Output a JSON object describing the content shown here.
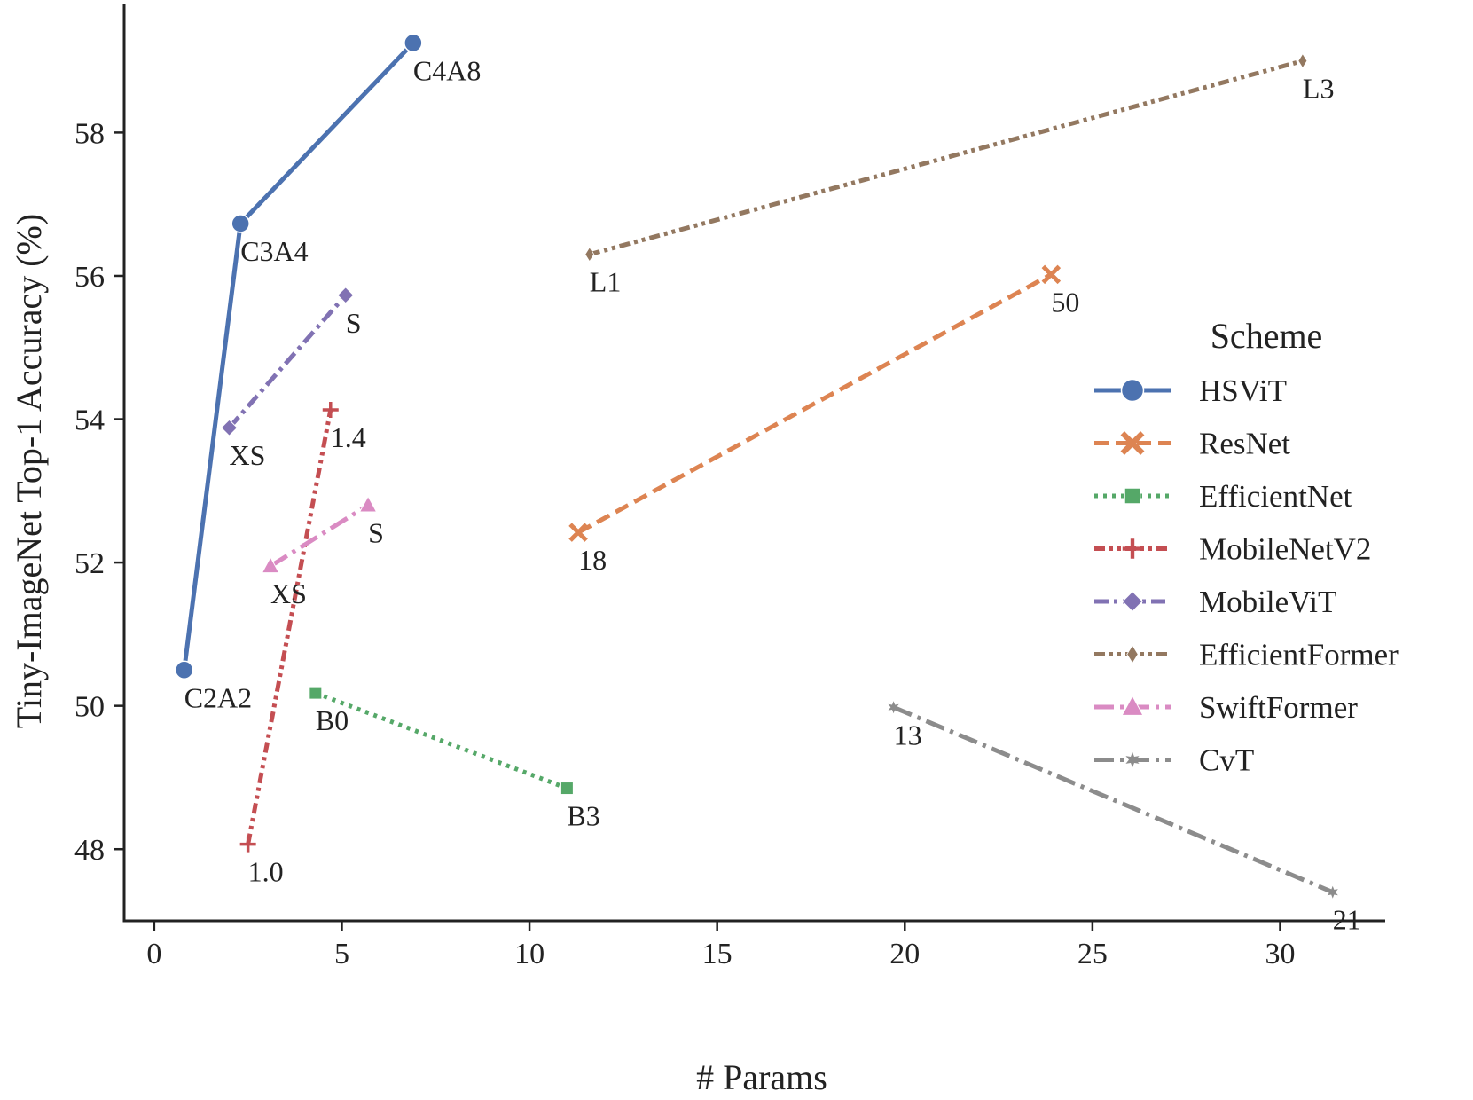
{
  "chart_data": {
    "type": "line",
    "title": "",
    "xlabel": "# Params",
    "ylabel": "Tiny-ImageNet Top-1 Accuracy (%)",
    "xlim": [
      -0.8,
      32.8
    ],
    "ylim": [
      47.0,
      59.8
    ],
    "xticks": [
      0,
      5,
      10,
      15,
      20,
      25,
      30
    ],
    "yticks": [
      48,
      50,
      52,
      54,
      56,
      58
    ],
    "grid": false,
    "legend": {
      "title": "Scheme",
      "position": "right"
    },
    "series": [
      {
        "name": "HSViT",
        "color": "#4c72b0",
        "marker": "circle",
        "dash": "solid",
        "points": [
          {
            "x": 0.8,
            "y": 50.5,
            "label": "C2A2"
          },
          {
            "x": 2.3,
            "y": 56.73,
            "label": "C3A4"
          },
          {
            "x": 6.9,
            "y": 59.25,
            "label": "C4A8"
          }
        ]
      },
      {
        "name": "ResNet",
        "color": "#dd8452",
        "marker": "x",
        "dash": "dashed",
        "points": [
          {
            "x": 11.3,
            "y": 52.42,
            "label": "18"
          },
          {
            "x": 23.9,
            "y": 56.02,
            "label": "50"
          }
        ]
      },
      {
        "name": "EfficientNet",
        "color": "#55a868",
        "marker": "square",
        "dash": "dotted",
        "points": [
          {
            "x": 4.3,
            "y": 50.18,
            "label": "B0"
          },
          {
            "x": 11.0,
            "y": 48.85,
            "label": "B3"
          }
        ]
      },
      {
        "name": "MobileNetV2",
        "color": "#c44e52",
        "marker": "plus",
        "dash": "dash-dot-dot",
        "points": [
          {
            "x": 2.5,
            "y": 48.07,
            "label": "1.0"
          },
          {
            "x": 4.7,
            "y": 54.13,
            "label": "1.4"
          }
        ]
      },
      {
        "name": "MobileViT",
        "color": "#8172b3",
        "marker": "diamond",
        "dash": "dash-dot",
        "points": [
          {
            "x": 2.0,
            "y": 53.88,
            "label": "XS"
          },
          {
            "x": 5.1,
            "y": 55.73,
            "label": "S"
          }
        ]
      },
      {
        "name": "EfficientFormer",
        "color": "#937860",
        "marker": "thin-diamond",
        "dash": "dash-dot-dot",
        "points": [
          {
            "x": 11.6,
            "y": 56.3,
            "label": "L1"
          },
          {
            "x": 30.6,
            "y": 59.0,
            "label": "L3"
          }
        ]
      },
      {
        "name": "SwiftFormer",
        "color": "#da8bc3",
        "marker": "triangle",
        "dash": "long-dash-dot",
        "points": [
          {
            "x": 3.1,
            "y": 51.95,
            "label": "XS"
          },
          {
            "x": 5.7,
            "y": 52.8,
            "label": "S"
          }
        ]
      },
      {
        "name": "CvT",
        "color": "#8c8c8c",
        "marker": "star",
        "dash": "long-dash-dot",
        "points": [
          {
            "x": 19.7,
            "y": 49.98,
            "label": "13"
          },
          {
            "x": 31.4,
            "y": 47.4,
            "label": "21"
          }
        ]
      }
    ]
  }
}
